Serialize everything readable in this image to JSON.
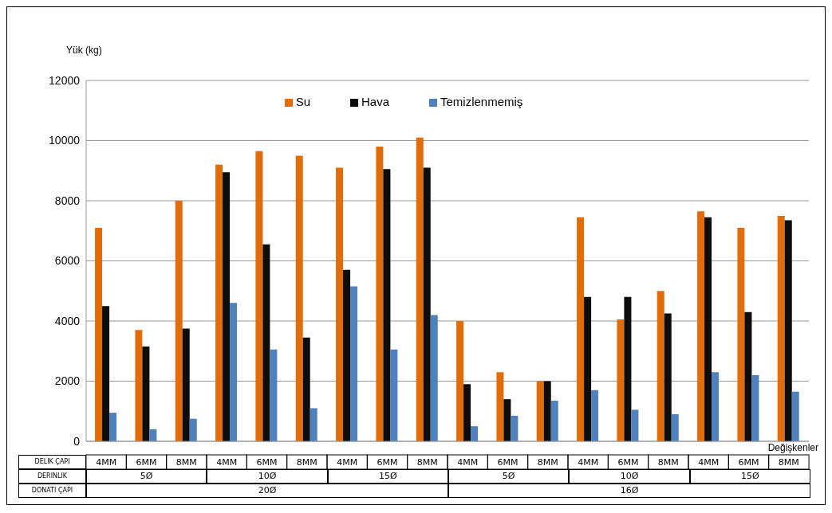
{
  "chart_data": {
    "type": "bar",
    "ylabel": "Yük (kg)",
    "xlabel": "Değişkenler",
    "categories": [
      "4MM",
      "6MM",
      "8MM",
      "4MM",
      "6MM",
      "8MM",
      "4MM",
      "6MM",
      "8MM",
      "4MM",
      "6MM",
      "8MM",
      "4MM",
      "6MM",
      "8MM",
      "4MM",
      "6MM",
      "8MM"
    ],
    "series": [
      {
        "name": "Su",
        "color": "#e36c0a",
        "values": [
          7100,
          3700,
          8000,
          9200,
          9650,
          9500,
          9100,
          9800,
          10100,
          4000,
          2300,
          2000,
          7450,
          4050,
          5000,
          7650,
          7100,
          7500
        ]
      },
      {
        "name": "Hava",
        "color": "#0d0d0d",
        "values": [
          4500,
          3150,
          3750,
          8950,
          6550,
          3450,
          5700,
          9050,
          9100,
          1900,
          1400,
          2000,
          4800,
          4800,
          4250,
          7450,
          4300,
          7350
        ]
      },
      {
        "name": "Temizlenmemiş",
        "color": "#4f81bd",
        "values": [
          950,
          400,
          750,
          4600,
          3050,
          1100,
          5150,
          3050,
          4200,
          500,
          850,
          1350,
          1700,
          1050,
          900,
          2300,
          2200,
          1650
        ]
      }
    ],
    "annotations": [
      "DELIK ÇAPI",
      "DERINLIK",
      "DONATI ÇAPI",
      "5Ø",
      "10Ø",
      "15Ø",
      "5Ø",
      "10Ø",
      "15Ø",
      "20Ø",
      "16Ø"
    ],
    "ylim": [
      0,
      12000
    ],
    "yticks": [
      0,
      2000,
      4000,
      6000,
      8000,
      10000,
      12000
    ],
    "grid": "y",
    "legend": "top"
  }
}
